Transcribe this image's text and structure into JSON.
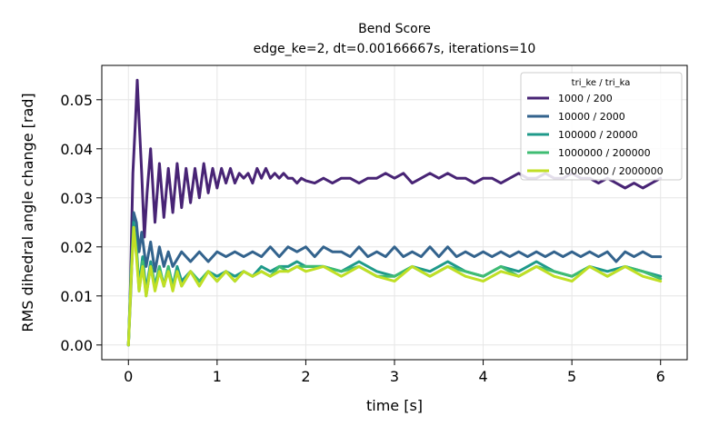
{
  "chart_data": {
    "type": "line",
    "title": "Bend Score",
    "subtitle": "edge_ke=2, dt=0.00166667s, iterations=10",
    "xlabel": "time [s]",
    "ylabel": "RMS dihedral angle change [rad]",
    "xlim": [
      -0.3,
      6.3
    ],
    "ylim": [
      -0.003,
      0.057
    ],
    "xticks": [
      0,
      1,
      2,
      3,
      4,
      5,
      6
    ],
    "xtick_labels": [
      "0",
      "1",
      "2",
      "3",
      "4",
      "5",
      "6"
    ],
    "yticks": [
      0.0,
      0.01,
      0.02,
      0.03,
      0.04,
      0.05
    ],
    "ytick_labels": [
      "0.00",
      "0.01",
      "0.02",
      "0.03",
      "0.04",
      "0.05"
    ],
    "grid": true,
    "legend": {
      "title": "tri_ke / tri_ka",
      "placement": "top-right"
    },
    "series": [
      {
        "name": "1000 / 200",
        "color": "#482475",
        "x": [
          0,
          0.02,
          0.05,
          0.08,
          0.1,
          0.12,
          0.15,
          0.18,
          0.21,
          0.25,
          0.3,
          0.35,
          0.4,
          0.45,
          0.5,
          0.55,
          0.6,
          0.65,
          0.7,
          0.75,
          0.8,
          0.85,
          0.9,
          0.95,
          1.0,
          1.05,
          1.1,
          1.15,
          1.2,
          1.25,
          1.3,
          1.35,
          1.4,
          1.45,
          1.5,
          1.55,
          1.6,
          1.65,
          1.7,
          1.75,
          1.8,
          1.85,
          1.9,
          1.95,
          2.0,
          2.1,
          2.2,
          2.3,
          2.4,
          2.5,
          2.6,
          2.7,
          2.8,
          2.9,
          3.0,
          3.1,
          3.2,
          3.3,
          3.4,
          3.5,
          3.6,
          3.7,
          3.8,
          3.9,
          4.0,
          4.1,
          4.2,
          4.3,
          4.4,
          4.5,
          4.6,
          4.7,
          4.8,
          4.9,
          5.0,
          5.1,
          5.2,
          5.3,
          5.4,
          5.5,
          5.6,
          5.7,
          5.8,
          5.9,
          6.0
        ],
        "values": [
          0.0,
          0.01,
          0.035,
          0.046,
          0.054,
          0.046,
          0.035,
          0.022,
          0.031,
          0.04,
          0.025,
          0.037,
          0.026,
          0.036,
          0.027,
          0.037,
          0.028,
          0.036,
          0.029,
          0.036,
          0.03,
          0.037,
          0.031,
          0.036,
          0.032,
          0.036,
          0.033,
          0.036,
          0.033,
          0.035,
          0.034,
          0.035,
          0.033,
          0.036,
          0.034,
          0.036,
          0.034,
          0.035,
          0.034,
          0.035,
          0.034,
          0.034,
          0.033,
          0.034,
          0.0335,
          0.033,
          0.034,
          0.033,
          0.034,
          0.034,
          0.033,
          0.034,
          0.034,
          0.035,
          0.034,
          0.035,
          0.033,
          0.034,
          0.035,
          0.034,
          0.035,
          0.034,
          0.034,
          0.033,
          0.034,
          0.034,
          0.033,
          0.034,
          0.035,
          0.034,
          0.034,
          0.035,
          0.034,
          0.034,
          0.035,
          0.034,
          0.034,
          0.033,
          0.034,
          0.033,
          0.032,
          0.033,
          0.032,
          0.033,
          0.034
        ]
      },
      {
        "name": "10000 / 2000",
        "color": "#33638d",
        "x": [
          0,
          0.03,
          0.06,
          0.09,
          0.12,
          0.15,
          0.2,
          0.25,
          0.3,
          0.35,
          0.4,
          0.45,
          0.5,
          0.6,
          0.7,
          0.8,
          0.9,
          1.0,
          1.1,
          1.2,
          1.3,
          1.4,
          1.5,
          1.6,
          1.7,
          1.8,
          1.9,
          2.0,
          2.1,
          2.2,
          2.3,
          2.4,
          2.5,
          2.6,
          2.7,
          2.8,
          2.9,
          3.0,
          3.1,
          3.2,
          3.3,
          3.4,
          3.5,
          3.6,
          3.7,
          3.8,
          3.9,
          4.0,
          4.1,
          4.2,
          4.3,
          4.4,
          4.5,
          4.6,
          4.7,
          4.8,
          4.9,
          5.0,
          5.1,
          5.2,
          5.3,
          5.4,
          5.5,
          5.6,
          5.7,
          5.8,
          5.9,
          6.0
        ],
        "values": [
          0.0,
          0.012,
          0.027,
          0.025,
          0.019,
          0.023,
          0.016,
          0.021,
          0.015,
          0.02,
          0.016,
          0.019,
          0.016,
          0.019,
          0.017,
          0.019,
          0.017,
          0.019,
          0.018,
          0.019,
          0.018,
          0.019,
          0.018,
          0.02,
          0.018,
          0.02,
          0.019,
          0.02,
          0.018,
          0.02,
          0.019,
          0.019,
          0.018,
          0.02,
          0.018,
          0.019,
          0.018,
          0.02,
          0.018,
          0.019,
          0.018,
          0.02,
          0.018,
          0.02,
          0.018,
          0.019,
          0.018,
          0.019,
          0.018,
          0.019,
          0.018,
          0.019,
          0.018,
          0.019,
          0.018,
          0.019,
          0.018,
          0.019,
          0.018,
          0.019,
          0.018,
          0.019,
          0.017,
          0.019,
          0.018,
          0.019,
          0.018,
          0.018
        ]
      },
      {
        "name": "100000 / 20000",
        "color": "#1f9a8a",
        "x": [
          0,
          0.03,
          0.06,
          0.09,
          0.12,
          0.16,
          0.2,
          0.25,
          0.3,
          0.35,
          0.4,
          0.45,
          0.5,
          0.55,
          0.6,
          0.7,
          0.8,
          0.9,
          1.0,
          1.1,
          1.2,
          1.3,
          1.4,
          1.5,
          1.6,
          1.7,
          1.8,
          1.9,
          2.0,
          2.2,
          2.4,
          2.6,
          2.8,
          3.0,
          3.2,
          3.4,
          3.6,
          3.8,
          4.0,
          4.2,
          4.4,
          4.6,
          4.8,
          5.0,
          5.2,
          5.4,
          5.6,
          5.8,
          6.0
        ],
        "values": [
          0.0,
          0.015,
          0.025,
          0.02,
          0.012,
          0.018,
          0.011,
          0.017,
          0.012,
          0.016,
          0.012,
          0.016,
          0.012,
          0.016,
          0.013,
          0.015,
          0.013,
          0.015,
          0.014,
          0.015,
          0.014,
          0.015,
          0.014,
          0.016,
          0.015,
          0.016,
          0.016,
          0.017,
          0.016,
          0.016,
          0.015,
          0.017,
          0.015,
          0.014,
          0.016,
          0.015,
          0.017,
          0.015,
          0.014,
          0.016,
          0.015,
          0.017,
          0.015,
          0.014,
          0.016,
          0.015,
          0.016,
          0.015,
          0.014
        ]
      },
      {
        "name": "1000000 / 200000",
        "color": "#3fbc73",
        "x": [
          0,
          0.03,
          0.06,
          0.09,
          0.12,
          0.16,
          0.2,
          0.25,
          0.3,
          0.35,
          0.4,
          0.45,
          0.5,
          0.55,
          0.6,
          0.7,
          0.8,
          0.9,
          1.0,
          1.1,
          1.2,
          1.3,
          1.4,
          1.5,
          1.6,
          1.7,
          1.8,
          1.9,
          2.0,
          2.2,
          2.4,
          2.6,
          2.8,
          3.0,
          3.2,
          3.4,
          3.6,
          3.8,
          4.0,
          4.2,
          4.4,
          4.6,
          4.8,
          5.0,
          5.2,
          5.4,
          5.6,
          5.8,
          6.0
        ],
        "values": [
          0.0,
          0.014,
          0.024,
          0.019,
          0.011,
          0.017,
          0.01,
          0.016,
          0.012,
          0.016,
          0.012,
          0.016,
          0.012,
          0.015,
          0.012,
          0.015,
          0.013,
          0.015,
          0.013,
          0.015,
          0.013,
          0.015,
          0.014,
          0.015,
          0.014,
          0.016,
          0.015,
          0.016,
          0.016,
          0.016,
          0.015,
          0.016,
          0.014,
          0.014,
          0.016,
          0.014,
          0.016,
          0.015,
          0.014,
          0.016,
          0.014,
          0.016,
          0.015,
          0.014,
          0.016,
          0.014,
          0.016,
          0.015,
          0.0135
        ]
      },
      {
        "name": "10000000 / 2000000",
        "color": "#c0df25",
        "x": [
          0,
          0.03,
          0.06,
          0.09,
          0.12,
          0.16,
          0.2,
          0.25,
          0.3,
          0.35,
          0.4,
          0.45,
          0.5,
          0.55,
          0.6,
          0.7,
          0.8,
          0.9,
          1.0,
          1.1,
          1.2,
          1.3,
          1.4,
          1.5,
          1.6,
          1.7,
          1.8,
          1.9,
          2.0,
          2.2,
          2.4,
          2.6,
          2.8,
          3.0,
          3.2,
          3.4,
          3.6,
          3.8,
          4.0,
          4.2,
          4.4,
          4.6,
          4.8,
          5.0,
          5.2,
          5.4,
          5.6,
          5.8,
          6.0
        ],
        "values": [
          0.0,
          0.013,
          0.024,
          0.018,
          0.011,
          0.016,
          0.01,
          0.016,
          0.011,
          0.015,
          0.012,
          0.015,
          0.011,
          0.015,
          0.012,
          0.015,
          0.012,
          0.015,
          0.013,
          0.015,
          0.013,
          0.015,
          0.014,
          0.015,
          0.014,
          0.015,
          0.015,
          0.016,
          0.015,
          0.016,
          0.014,
          0.016,
          0.014,
          0.013,
          0.016,
          0.014,
          0.016,
          0.014,
          0.013,
          0.015,
          0.014,
          0.016,
          0.014,
          0.013,
          0.016,
          0.014,
          0.016,
          0.014,
          0.013
        ]
      }
    ]
  }
}
